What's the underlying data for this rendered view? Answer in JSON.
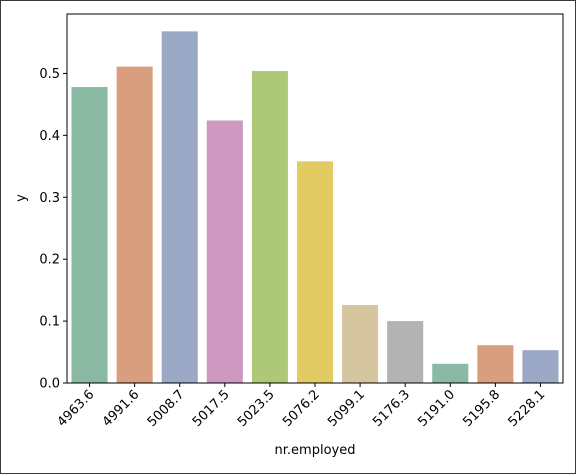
{
  "chart_data": {
    "type": "bar",
    "xlabel": "nr.employed",
    "ylabel": "y",
    "categories": [
      "4963.6",
      "4991.6",
      "5008.7",
      "5017.5",
      "5023.5",
      "5076.2",
      "5099.1",
      "5176.3",
      "5191.0",
      "5195.8",
      "5228.1"
    ],
    "values": [
      0.478,
      0.511,
      0.568,
      0.424,
      0.504,
      0.358,
      0.126,
      0.1,
      0.031,
      0.061,
      0.053
    ],
    "colors": [
      "#8ab9a4",
      "#d99e7d",
      "#9ba8c6",
      "#cd99c1",
      "#adc978",
      "#e2cb63",
      "#d6c6a0",
      "#b3b3b3",
      "#8ab9a4",
      "#d99e7d",
      "#9ba8c6"
    ],
    "yticks": [
      0.0,
      0.1,
      0.2,
      0.3,
      0.4,
      0.5
    ],
    "ytick_labels": [
      "0.0",
      "0.1",
      "0.2",
      "0.3",
      "0.4",
      "0.5"
    ],
    "ylim": [
      0,
      0.596
    ],
    "grid": false,
    "legend": "none"
  }
}
